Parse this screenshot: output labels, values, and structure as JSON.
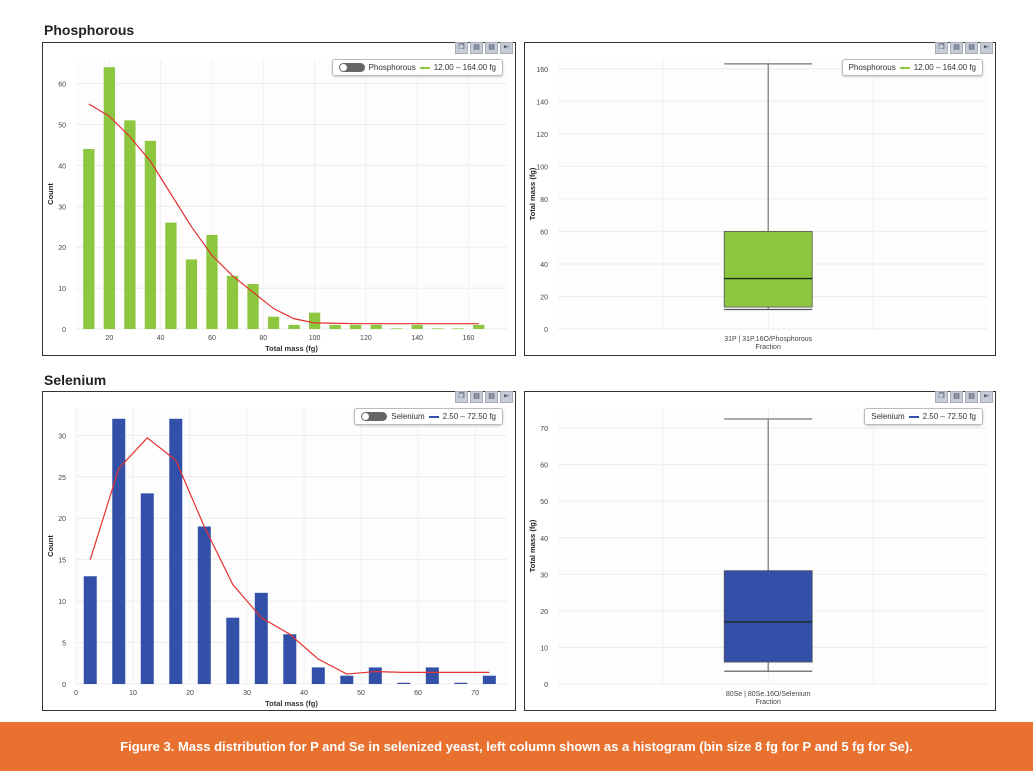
{
  "sections": {
    "phosphorous": "Phosphorous",
    "selenium": "Selenium"
  },
  "toolbar_icons": [
    "copy-icon",
    "save-icon",
    "export-icon",
    "collapse-icon"
  ],
  "legends": {
    "p": {
      "name": "Phosphorous",
      "range": "12.00 – 164.00 fg",
      "color": "#8dc63f"
    },
    "se": {
      "name": "Selenium",
      "range": "2.50 – 72.50 fg",
      "color": "#3350a8"
    }
  },
  "caption": "Figure 3. Mass distribution for P and Se in selenized yeast, left column shown as a histogram (bin size 8 fg for P and 5 fg for Se).",
  "chart_data": [
    {
      "type": "bar",
      "title": "Phosphorous histogram",
      "xlabel": "Total mass (fg)",
      "ylabel": "Count",
      "color": "#8dc63f",
      "fit_color": "#e53030",
      "x": [
        12,
        20,
        28,
        36,
        44,
        52,
        60,
        68,
        76,
        84,
        92,
        100,
        108,
        116,
        124,
        132,
        140,
        148,
        156,
        164
      ],
      "values": [
        44,
        64,
        51,
        46,
        26,
        17,
        23,
        13,
        11,
        3,
        1,
        4,
        1,
        1,
        1,
        0,
        1,
        0,
        0,
        1
      ],
      "fit": [
        55,
        52,
        47,
        41,
        33,
        25,
        18,
        13,
        9,
        5,
        2.5,
        1.5,
        1.4,
        1.3,
        1.3,
        1.3,
        1.3,
        1.3,
        1.3,
        1.3
      ],
      "xlim": [
        7,
        175
      ],
      "ylim": [
        0,
        66
      ],
      "bin": 8,
      "xticks": [
        20,
        40,
        60,
        80,
        100,
        120,
        140,
        160
      ],
      "yticks": [
        0,
        10,
        20,
        30,
        40,
        50,
        60
      ]
    },
    {
      "type": "box",
      "title": "Phosphorous box plot",
      "xlabel": "31P | 31P.16O/Phosphorous",
      "xlabel2": "Fraction",
      "ylabel": "Total mass (fg)",
      "color": "#8dc63f",
      "min": 12,
      "q1": 13.5,
      "median": 31,
      "q3": 60,
      "max": 163,
      "ylim": [
        0,
        166
      ],
      "yticks": [
        0,
        20,
        40,
        60,
        80,
        100,
        120,
        140,
        160
      ]
    },
    {
      "type": "bar",
      "title": "Selenium histogram",
      "xlabel": "Total mass (fg)",
      "ylabel": "Count",
      "color": "#3350a8",
      "fit_color": "#e53030",
      "x": [
        2.5,
        7.5,
        12.5,
        17.5,
        22.5,
        27.5,
        32.5,
        37.5,
        42.5,
        47.5,
        52.5,
        57.5,
        62.5,
        67.5,
        72.5
      ],
      "values": [
        13,
        32,
        23,
        32,
        19,
        8,
        11,
        6,
        2,
        1,
        2,
        0,
        2,
        0,
        1
      ],
      "fit": [
        15,
        26,
        29.7,
        27,
        19,
        12,
        8,
        6,
        3,
        1.2,
        1.5,
        1.4,
        1.4,
        1.4,
        1.4
      ],
      "xlim": [
        0,
        75.6
      ],
      "ylim": [
        0,
        33.3
      ],
      "bin": 5,
      "xticks": [
        0,
        10,
        20,
        30,
        40,
        50,
        60,
        70
      ],
      "yticks": [
        0,
        5,
        10,
        15,
        20,
        25,
        30
      ]
    },
    {
      "type": "box",
      "title": "Selenium box plot",
      "xlabel": "80Se | 80Se.16O/Selenium",
      "xlabel2": "Fraction",
      "ylabel": "Total mass (fg)",
      "color": "#3350a8",
      "min": 3.5,
      "q1": 6,
      "median": 17,
      "q3": 31,
      "max": 72.5,
      "ylim": [
        0,
        75.5
      ],
      "yticks": [
        0,
        10,
        20,
        30,
        40,
        50,
        60,
        70
      ]
    }
  ]
}
